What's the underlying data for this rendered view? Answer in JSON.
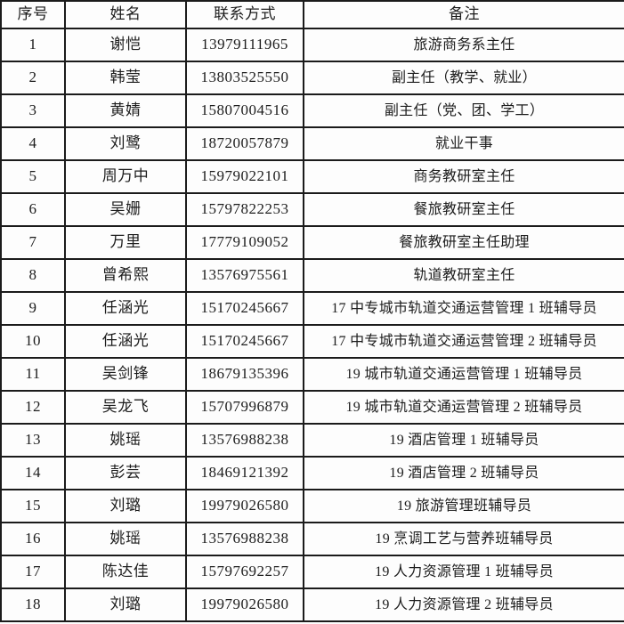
{
  "colors": {
    "border": "#1b1b1b",
    "background": "#fdfdfd",
    "text": "#1c1c1c"
  },
  "table": {
    "headers": [
      "序号",
      "姓名",
      "联系方式",
      "备注"
    ],
    "rows": [
      {
        "no": "1",
        "name": "谢恺",
        "phone": "13979111965",
        "remark": "旅游商务系主任"
      },
      {
        "no": "2",
        "name": "韩莹",
        "phone": "13803525550",
        "remark": "副主任（教学、就业）"
      },
      {
        "no": "3",
        "name": "黄婧",
        "phone": "15807004516",
        "remark": "副主任（党、团、学工）"
      },
      {
        "no": "4",
        "name": "刘鹭",
        "phone": "18720057879",
        "remark": "就业干事"
      },
      {
        "no": "5",
        "name": "周万中",
        "phone": "15979022101",
        "remark": "商务教研室主任"
      },
      {
        "no": "6",
        "name": "吴姗",
        "phone": "15797822253",
        "remark": "餐旅教研室主任"
      },
      {
        "no": "7",
        "name": "万里",
        "phone": "17779109052",
        "remark": "餐旅教研室主任助理"
      },
      {
        "no": "8",
        "name": "曾希熙",
        "phone": "13576975561",
        "remark": "轨道教研室主任"
      },
      {
        "no": "9",
        "name": "任涵光",
        "phone": "15170245667",
        "remark": "17 中专城市轨道交通运营管理 1 班辅导员"
      },
      {
        "no": "10",
        "name": "任涵光",
        "phone": "15170245667",
        "remark": "17 中专城市轨道交通运营管理 2 班辅导员"
      },
      {
        "no": "11",
        "name": "吴剑锋",
        "phone": "18679135396",
        "remark": "19 城市轨道交通运营管理 1 班辅导员"
      },
      {
        "no": "12",
        "name": "吴龙飞",
        "phone": "15707996879",
        "remark": "19 城市轨道交通运营管理 2 班辅导员"
      },
      {
        "no": "13",
        "name": "姚瑶",
        "phone": "13576988238",
        "remark": "19 酒店管理 1 班辅导员"
      },
      {
        "no": "14",
        "name": "彭芸",
        "phone": "18469121392",
        "remark": "19 酒店管理 2 班辅导员"
      },
      {
        "no": "15",
        "name": "刘璐",
        "phone": "19979026580",
        "remark": "19 旅游管理班辅导员"
      },
      {
        "no": "16",
        "name": "姚瑶",
        "phone": "13576988238",
        "remark": "19 烹调工艺与营养班辅导员"
      },
      {
        "no": "17",
        "name": "陈达佳",
        "phone": "15797692257",
        "remark": "19 人力资源管理 1 班辅导员"
      },
      {
        "no": "18",
        "name": "刘璐",
        "phone": "19979026580",
        "remark": "19 人力资源管理 2 班辅导员"
      }
    ]
  }
}
